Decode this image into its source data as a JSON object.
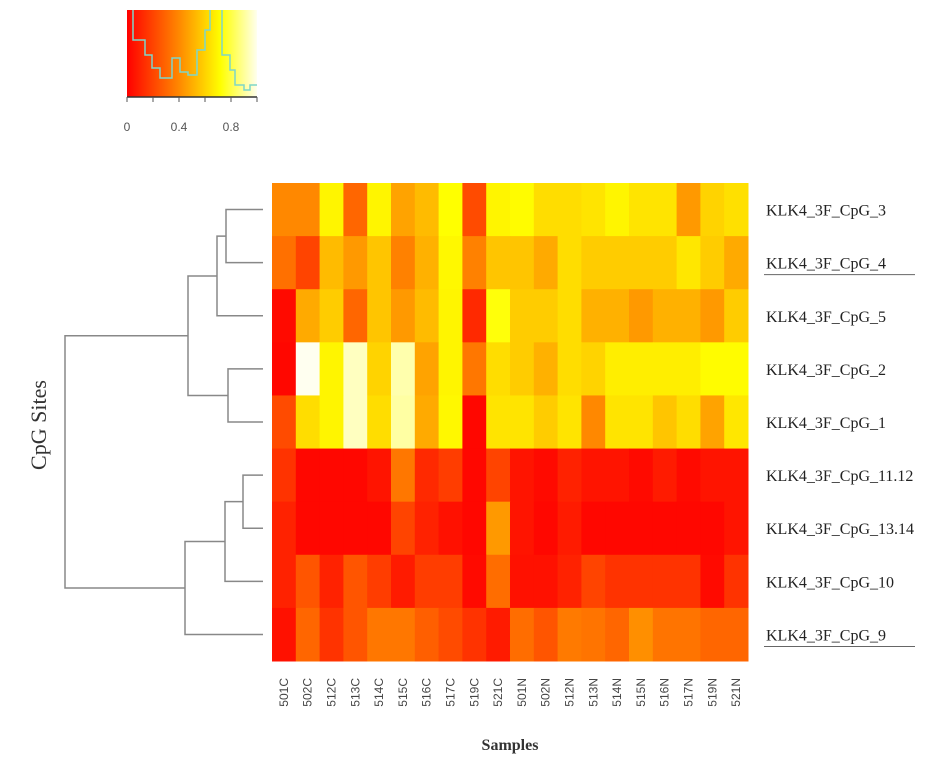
{
  "chart_data": {
    "type": "heatmap",
    "xlabel": "Samples",
    "ylabel": "CpG Sites",
    "columns": [
      "501C",
      "502C",
      "512C",
      "513C",
      "514C",
      "515C",
      "516C",
      "517C",
      "519C",
      "521C",
      "501N",
      "502N",
      "512N",
      "513N",
      "514N",
      "515N",
      "516N",
      "517N",
      "519N",
      "521N"
    ],
    "rows": [
      "KLK4_3F_CpG_3",
      "KLK4_3F_CpG_4",
      "KLK4_3F_CpG_5",
      "KLK4_3F_CpG_2",
      "KLK4_3F_CpG_1",
      "KLK4_3F_CpG_11.12",
      "KLK4_3F_CpG_13.14",
      "KLK4_3F_CpG_10",
      "KLK4_3F_CpG_9"
    ],
    "underlined_rows": [
      "KLK4_3F_CpG_4",
      "KLK4_3F_CpG_9"
    ],
    "values": [
      [
        0.4,
        0.4,
        0.72,
        0.3,
        0.72,
        0.48,
        0.55,
        0.75,
        0.22,
        0.72,
        0.74,
        0.65,
        0.65,
        0.67,
        0.72,
        0.67,
        0.67,
        0.45,
        0.62,
        0.66
      ],
      [
        0.33,
        0.2,
        0.55,
        0.45,
        0.58,
        0.38,
        0.52,
        0.73,
        0.38,
        0.58,
        0.58,
        0.5,
        0.65,
        0.6,
        0.6,
        0.6,
        0.6,
        0.68,
        0.6,
        0.5
      ],
      [
        0.03,
        0.5,
        0.6,
        0.3,
        0.58,
        0.45,
        0.55,
        0.72,
        0.12,
        0.76,
        0.6,
        0.6,
        0.65,
        0.52,
        0.52,
        0.45,
        0.52,
        0.52,
        0.45,
        0.6
      ],
      [
        0.02,
        1.0,
        0.72,
        0.95,
        0.62,
        0.93,
        0.48,
        0.72,
        0.35,
        0.65,
        0.6,
        0.52,
        0.65,
        0.62,
        0.7,
        0.7,
        0.7,
        0.7,
        0.74,
        0.74
      ],
      [
        0.22,
        0.65,
        0.72,
        0.95,
        0.65,
        0.92,
        0.5,
        0.73,
        0.02,
        0.67,
        0.67,
        0.6,
        0.67,
        0.4,
        0.67,
        0.67,
        0.58,
        0.65,
        0.48,
        0.68
      ],
      [
        0.15,
        0.02,
        0.02,
        0.02,
        0.06,
        0.35,
        0.12,
        0.18,
        0.02,
        0.2,
        0.06,
        0.03,
        0.1,
        0.06,
        0.06,
        0.03,
        0.08,
        0.03,
        0.06,
        0.06
      ],
      [
        0.1,
        0.02,
        0.02,
        0.02,
        0.02,
        0.2,
        0.1,
        0.05,
        0.02,
        0.45,
        0.06,
        0.02,
        0.08,
        0.02,
        0.02,
        0.02,
        0.02,
        0.02,
        0.02,
        0.06
      ],
      [
        0.1,
        0.25,
        0.1,
        0.25,
        0.18,
        0.08,
        0.18,
        0.18,
        0.03,
        0.32,
        0.05,
        0.05,
        0.1,
        0.2,
        0.15,
        0.15,
        0.15,
        0.15,
        0.03,
        0.15
      ],
      [
        0.05,
        0.3,
        0.15,
        0.25,
        0.35,
        0.35,
        0.28,
        0.22,
        0.15,
        0.08,
        0.32,
        0.25,
        0.36,
        0.34,
        0.3,
        0.42,
        0.34,
        0.34,
        0.3,
        0.3
      ]
    ],
    "color_scale": {
      "low": "#FF0000",
      "mid": "#FFFF00",
      "high": "#FFFFFF",
      "range": [
        0,
        1
      ]
    },
    "color_key_ticks": [
      "0",
      "0.4",
      "0.8"
    ],
    "histogram_color": "#7fd6c8",
    "dendrogram": "row clustering: ((((CpG_3,CpG_4),CpG_5),(CpG_2,CpG_1)),(((CpG_11.12,CpG_13.14),CpG_10),CpG_9))"
  }
}
